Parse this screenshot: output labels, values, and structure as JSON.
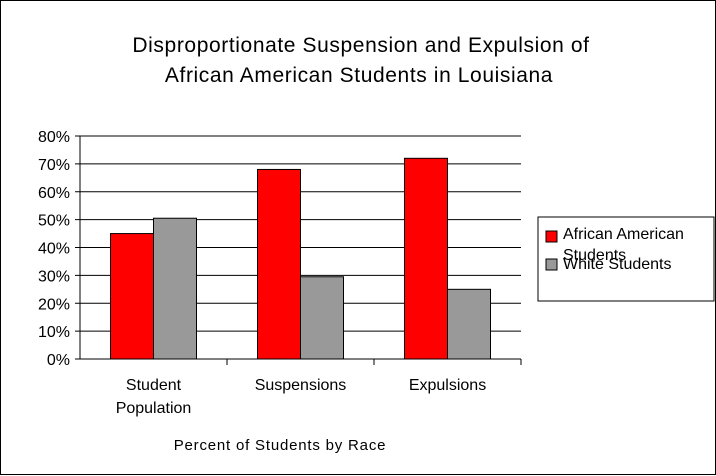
{
  "chart_data": {
    "type": "bar",
    "title": [
      "Disproportionate Suspension and Expulsion of",
      "African American Students in Louisiana"
    ],
    "xlabel": "Percent of Students by Race",
    "ylabel": "",
    "categories": [
      [
        "Student",
        "Population"
      ],
      [
        "Suspensions"
      ],
      [
        "Expulsions"
      ]
    ],
    "series": [
      {
        "name": "African American Students",
        "legend_lines": [
          "African American",
          "Students"
        ],
        "color": "#ff0000",
        "values": [
          45,
          68,
          72
        ]
      },
      {
        "name": "White Students",
        "legend_lines": [
          "White Students"
        ],
        "color": "#999999",
        "values": [
          50.5,
          29.5,
          25
        ]
      }
    ],
    "ylim": [
      0,
      80
    ],
    "yticks": [
      0,
      10,
      20,
      30,
      40,
      50,
      60,
      70,
      80
    ],
    "ytick_format": "percent",
    "grid": true,
    "legend_position": "right"
  }
}
